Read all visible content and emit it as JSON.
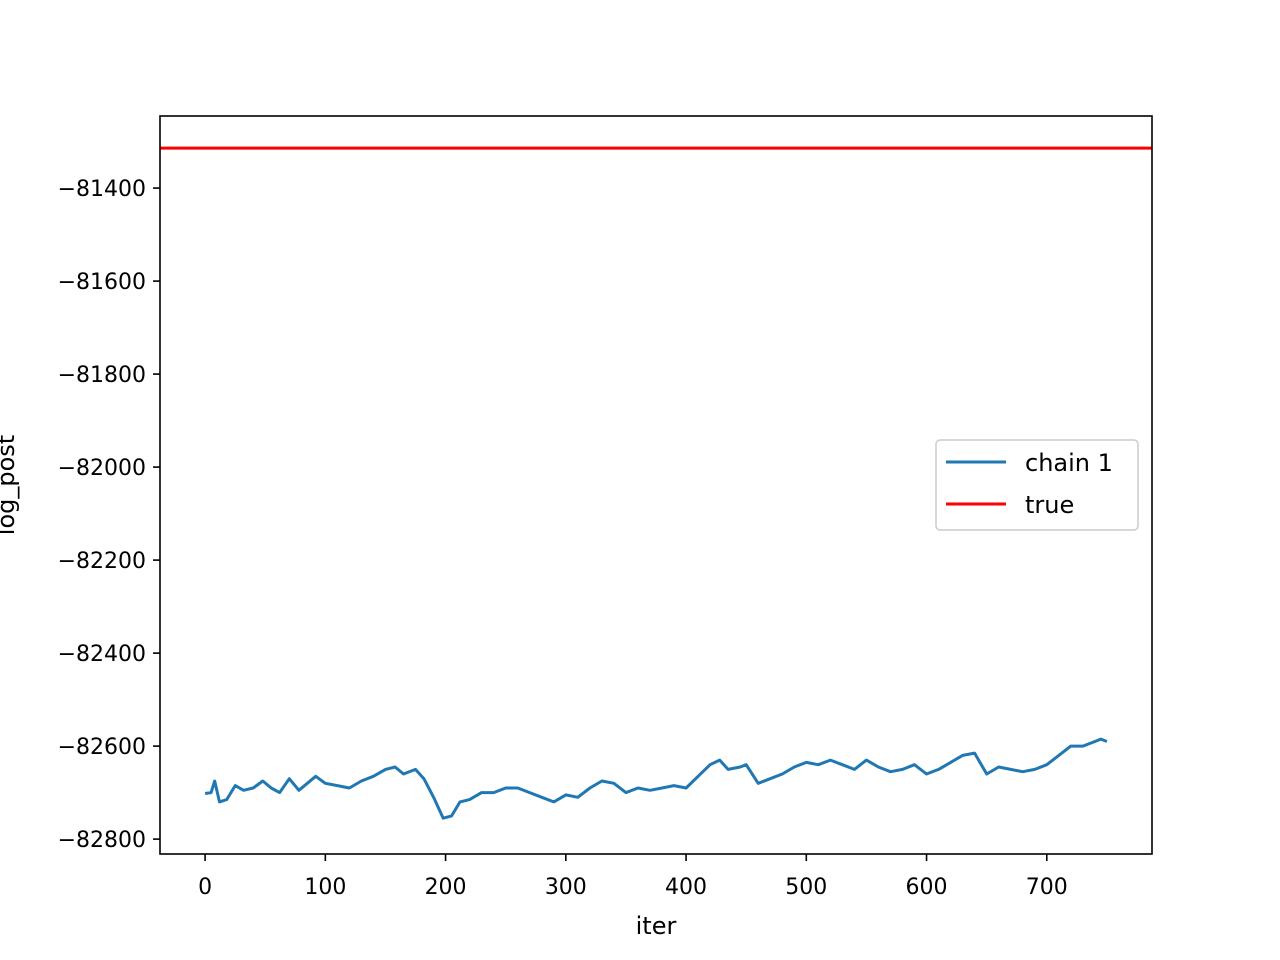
{
  "chart_data": {
    "type": "line",
    "title": "",
    "xlabel": "iter",
    "ylabel": "log_post",
    "xlim": [
      -37.5,
      787.5
    ],
    "ylim": [
      -82832,
      -81245
    ],
    "x_ticks": [
      0,
      100,
      200,
      300,
      400,
      500,
      600,
      700
    ],
    "x_tick_labels": [
      "0",
      "100",
      "200",
      "300",
      "400",
      "500",
      "600",
      "700"
    ],
    "y_ticks": [
      -82800,
      -82600,
      -82400,
      -82200,
      -82000,
      -81800,
      -81600,
      -81400
    ],
    "y_tick_labels": [
      "−82800",
      "−82600",
      "−82400",
      "−82200",
      "−82000",
      "−81800",
      "−81600",
      "−81400"
    ],
    "grid": false,
    "legend_position": "center-right",
    "series": [
      {
        "name": "chain 1",
        "color": "#1f77b4",
        "x": [
          0,
          5,
          8,
          12,
          18,
          25,
          32,
          40,
          48,
          55,
          62,
          70,
          78,
          85,
          92,
          100,
          110,
          120,
          130,
          140,
          150,
          158,
          165,
          175,
          182,
          190,
          198,
          205,
          212,
          220,
          230,
          240,
          250,
          260,
          270,
          280,
          290,
          300,
          310,
          320,
          330,
          340,
          350,
          360,
          370,
          380,
          390,
          400,
          410,
          420,
          428,
          435,
          445,
          450,
          460,
          470,
          480,
          490,
          500,
          510,
          520,
          530,
          540,
          550,
          560,
          570,
          580,
          590,
          600,
          610,
          620,
          630,
          640,
          650,
          660,
          670,
          680,
          690,
          700,
          710,
          720,
          730,
          740,
          745,
          750
        ],
        "values": [
          -82702,
          -82700,
          -82675,
          -82720,
          -82715,
          -82685,
          -82695,
          -82690,
          -82675,
          -82690,
          -82700,
          -82670,
          -82695,
          -82680,
          -82665,
          -82680,
          -82685,
          -82690,
          -82675,
          -82665,
          -82650,
          -82645,
          -82660,
          -82650,
          -82670,
          -82710,
          -82755,
          -82750,
          -82720,
          -82715,
          -82700,
          -82700,
          -82690,
          -82690,
          -82700,
          -82710,
          -82720,
          -82705,
          -82710,
          -82690,
          -82675,
          -82680,
          -82700,
          -82690,
          -82695,
          -82690,
          -82685,
          -82690,
          -82665,
          -82640,
          -82630,
          -82650,
          -82645,
          -82640,
          -82680,
          -82670,
          -82660,
          -82645,
          -82635,
          -82640,
          -82630,
          -82640,
          -82650,
          -82630,
          -82645,
          -82655,
          -82650,
          -82640,
          -82660,
          -82650,
          -82635,
          -82620,
          -82615,
          -82660,
          -82645,
          -82650,
          -82655,
          -82650,
          -82640,
          -82620,
          -82600,
          -82600,
          -82590,
          -82585,
          -82590
        ]
      },
      {
        "name": "true",
        "color": "#ff0000",
        "y": -81314
      }
    ]
  }
}
